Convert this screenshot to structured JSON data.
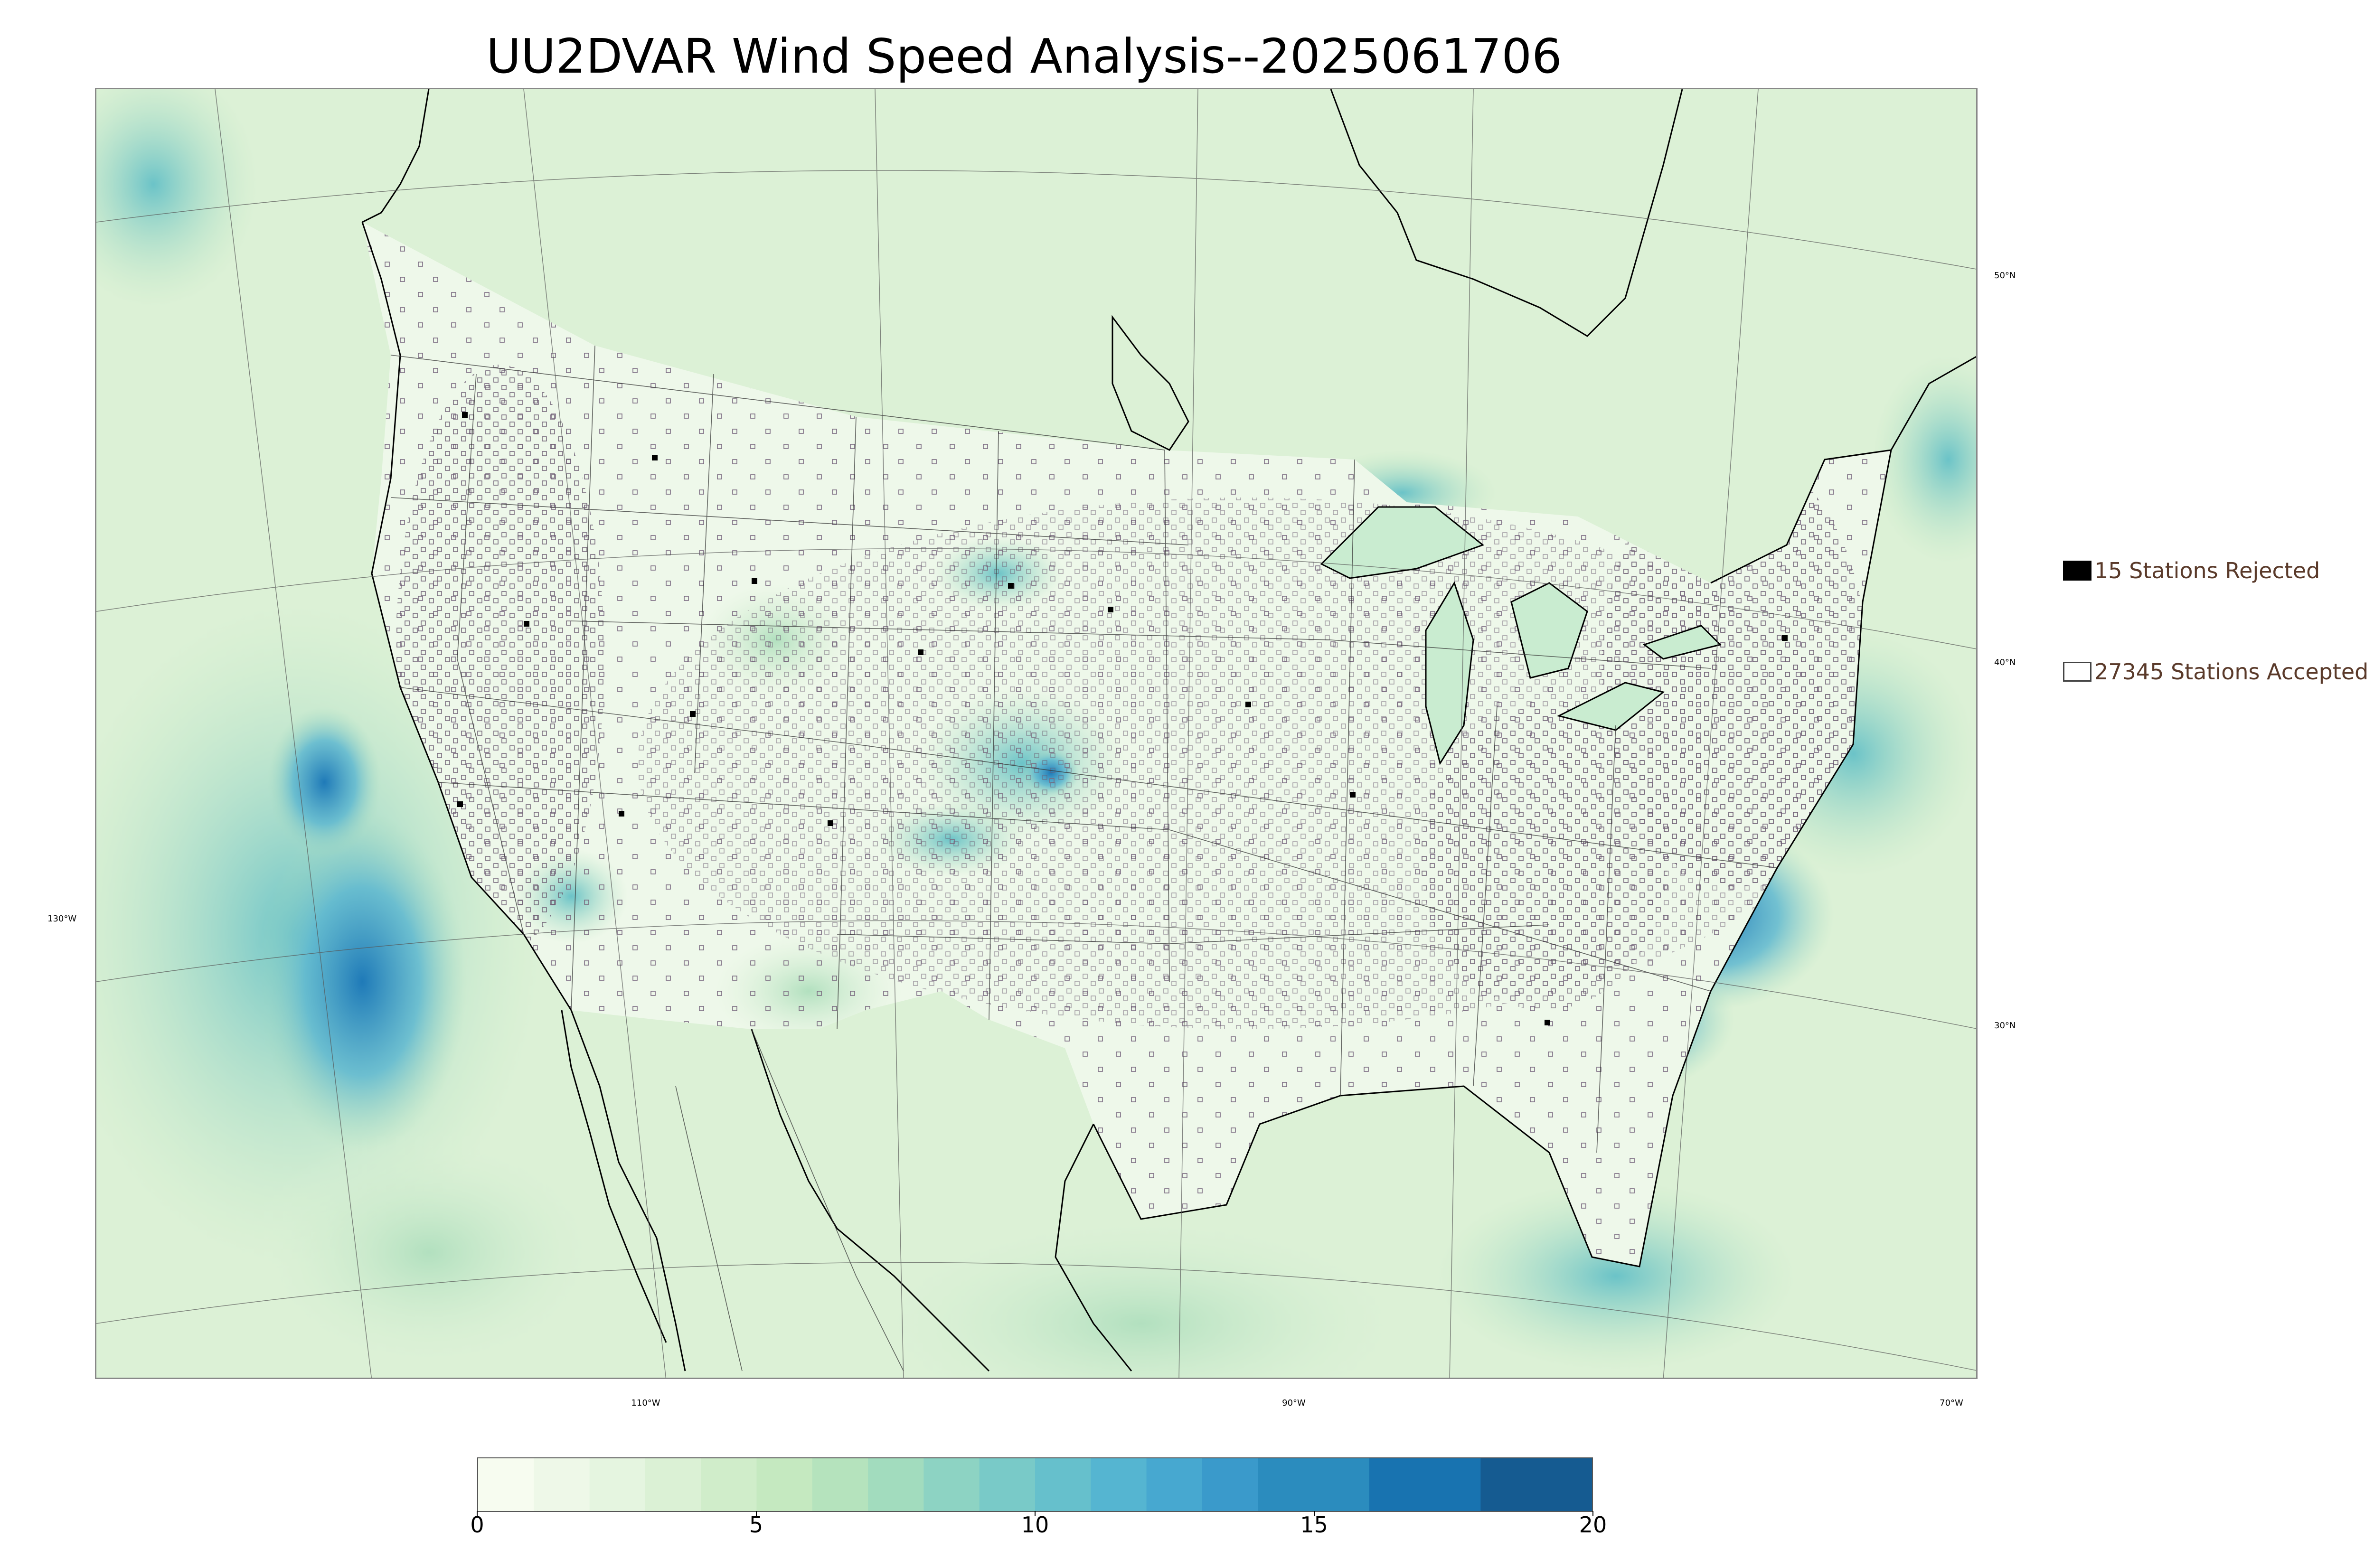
{
  "title": "UU2DVAR Wind Speed Analysis--2025061706",
  "map": {
    "lat_labels": [
      "50°N",
      "40°N",
      "30°N"
    ],
    "lon_labels": [
      "130°W",
      "110°W",
      "90°W",
      "70°W"
    ],
    "colors": {
      "ocean_base": "#dff2d8",
      "land_base": "#eef8ea",
      "coast": "#000000",
      "borders": "#333333",
      "grid": "#555555"
    }
  },
  "legend": {
    "rejected_label": "15 Stations Rejected",
    "accepted_label": "27345 Stations Accepted"
  },
  "colorbar": {
    "min": 0,
    "max": 20,
    "ticks": [
      "0",
      "5",
      "10",
      "15",
      "20"
    ],
    "tick_values": [
      0,
      5,
      10,
      15,
      20
    ],
    "bins": [
      {
        "from": 0,
        "to": 1,
        "color": "#f7fcf0"
      },
      {
        "from": 1,
        "to": 2,
        "color": "#eef8e8"
      },
      {
        "from": 2,
        "to": 3,
        "color": "#e5f5e0"
      },
      {
        "from": 3,
        "to": 4,
        "color": "#dbf1d5"
      },
      {
        "from": 4,
        "to": 5,
        "color": "#d0edca"
      },
      {
        "from": 5,
        "to": 6,
        "color": "#c5e9c0"
      },
      {
        "from": 6,
        "to": 7,
        "color": "#b5e3bd"
      },
      {
        "from": 7,
        "to": 8,
        "color": "#a2dcbe"
      },
      {
        "from": 8,
        "to": 9,
        "color": "#8dd3c3"
      },
      {
        "from": 9,
        "to": 10,
        "color": "#79cac8"
      },
      {
        "from": 10,
        "to": 11,
        "color": "#66c0cc"
      },
      {
        "from": 11,
        "to": 12,
        "color": "#55b5d1"
      },
      {
        "from": 12,
        "to": 13,
        "color": "#47a8d0"
      },
      {
        "from": 13,
        "to": 14,
        "color": "#3a9acb"
      },
      {
        "from": 14,
        "to": 16,
        "color": "#2b8cbe"
      },
      {
        "from": 16,
        "to": 18,
        "color": "#1873b0"
      },
      {
        "from": 18,
        "to": 20,
        "color": "#155b91"
      }
    ]
  }
}
